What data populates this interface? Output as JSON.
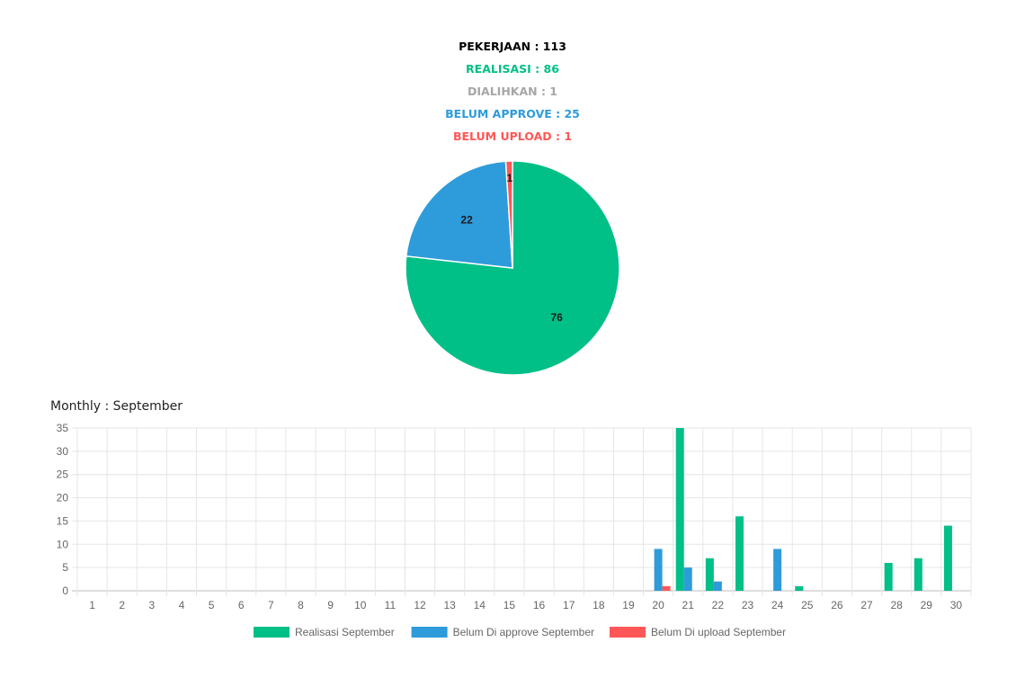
{
  "summary": {
    "pekerjaan": "PEKERJAAN : 113",
    "realisasi": "REALISASI : 86",
    "dialihkan": "DIALIHKAN : 1",
    "belum_approve": "BELUM APPROVE : 25",
    "belum_upload": "BELUM UPLOAD : 1"
  },
  "colors": {
    "realisasi": "#00BF87",
    "dialihkan": "#A6A6A6",
    "approve": "#2E9BDB",
    "upload": "#FF5757"
  },
  "bar_chart_title": "Monthly : September",
  "chart_data": [
    {
      "type": "pie",
      "slices": [
        {
          "label": "Realisasi",
          "value": 76,
          "color": "#00BF87"
        },
        {
          "label": "Belum Di approve",
          "value": 22,
          "color": "#2E9BDB"
        },
        {
          "label": "Belum Di upload",
          "value": 1,
          "color": "#FF5757"
        }
      ],
      "data_labels": [
        "76",
        "22",
        "1"
      ]
    },
    {
      "type": "bar",
      "title": "Monthly : September",
      "categories": [
        "1",
        "2",
        "3",
        "4",
        "5",
        "6",
        "7",
        "8",
        "9",
        "10",
        "11",
        "12",
        "13",
        "14",
        "15",
        "16",
        "17",
        "18",
        "19",
        "20",
        "21",
        "22",
        "23",
        "24",
        "25",
        "26",
        "27",
        "28",
        "29",
        "30"
      ],
      "series": [
        {
          "name": "Realisasi September",
          "color": "#00BF87",
          "values": [
            0,
            0,
            0,
            0,
            0,
            0,
            0,
            0,
            0,
            0,
            0,
            0,
            0,
            0,
            0,
            0,
            0,
            0,
            0,
            0,
            35,
            7,
            16,
            0,
            1,
            0,
            0,
            6,
            7,
            14
          ]
        },
        {
          "name": "Belum Di approve September",
          "color": "#2E9BDB",
          "values": [
            0,
            0,
            0,
            0,
            0,
            0,
            0,
            0,
            0,
            0,
            0,
            0,
            0,
            0,
            0,
            0,
            0,
            0,
            0,
            9,
            5,
            2,
            0,
            9,
            0,
            0,
            0,
            0,
            0,
            0
          ]
        },
        {
          "name": "Belum Di upload September",
          "color": "#FF5757",
          "values": [
            0,
            0,
            0,
            0,
            0,
            0,
            0,
            0,
            0,
            0,
            0,
            0,
            0,
            0,
            0,
            0,
            0,
            0,
            0,
            1,
            0,
            0,
            0,
            0,
            0,
            0,
            0,
            0,
            0,
            0
          ]
        }
      ],
      "y_ticks": [
        0,
        5,
        10,
        15,
        20,
        25,
        30,
        35
      ],
      "ylim": [
        0,
        35
      ],
      "grid": true,
      "legend": "bottom"
    }
  ]
}
